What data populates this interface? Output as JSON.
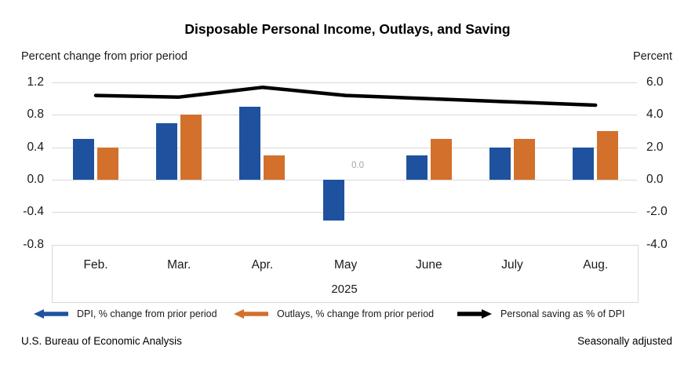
{
  "title": "Disposable Personal Income, Outlays, and Saving",
  "left_axis_title": "Percent change from prior period",
  "right_axis_title": "Percent",
  "footer": {
    "source": "U.S. Bureau of Economic Analysis",
    "note": "Seasonally adjusted"
  },
  "colors": {
    "dpi_bar": "#1F529E",
    "outlays_bar": "#D2702C",
    "saving_line": "#000000",
    "gridline": "#d9d9d9",
    "annotation_gray": "#a6a6a6"
  },
  "legend": [
    {
      "label": "DPI, % change from prior period",
      "color": "#1F529E",
      "direction": "left",
      "marker": "arrow-left-icon"
    },
    {
      "label": "Outlays, % change from prior period",
      "color": "#D2702C",
      "direction": "left",
      "marker": "arrow-left-icon"
    },
    {
      "label": "Personal saving as % of DPI",
      "color": "#000000",
      "direction": "right",
      "marker": "arrow-right-icon"
    }
  ],
  "chart_data": {
    "type": "bar",
    "subtype": "grouped bars with overlay line",
    "categories": [
      "Feb.",
      "Mar.",
      "Apr.",
      "May",
      "June",
      "July",
      "Aug."
    ],
    "year_label": "2025",
    "series": [
      {
        "name": "DPI, % change from prior period",
        "type": "bar",
        "axis": "left",
        "color": "#1F529E",
        "values": [
          0.5,
          0.7,
          0.9,
          -0.5,
          0.3,
          0.4,
          0.4
        ]
      },
      {
        "name": "Outlays, % change from prior period",
        "type": "bar",
        "axis": "left",
        "color": "#D2702C",
        "values": [
          0.4,
          0.8,
          0.3,
          0.0,
          0.5,
          0.5,
          0.6
        ]
      },
      {
        "name": "Personal saving as % of DPI",
        "type": "line",
        "axis": "right",
        "color": "#000000",
        "values": [
          5.2,
          5.1,
          5.7,
          5.2,
          5.0,
          4.8,
          4.6
        ]
      }
    ],
    "left_axis": {
      "label": "Percent change from prior period",
      "ticks": [
        1.2,
        0.8,
        0.4,
        0.0,
        -0.4,
        -0.8
      ],
      "range": [
        -0.8,
        1.2
      ]
    },
    "right_axis": {
      "label": "Percent",
      "ticks": [
        6.0,
        4.0,
        2.0,
        0.0,
        -2.0,
        -4.0
      ],
      "range": [
        -4.0,
        6.0
      ]
    },
    "grid": true,
    "legend_position": "bottom",
    "annotations": [
      {
        "text": "0.0",
        "category": "May",
        "series": "Outlays, % change from prior period",
        "color": "#a6a6a6"
      }
    ]
  }
}
